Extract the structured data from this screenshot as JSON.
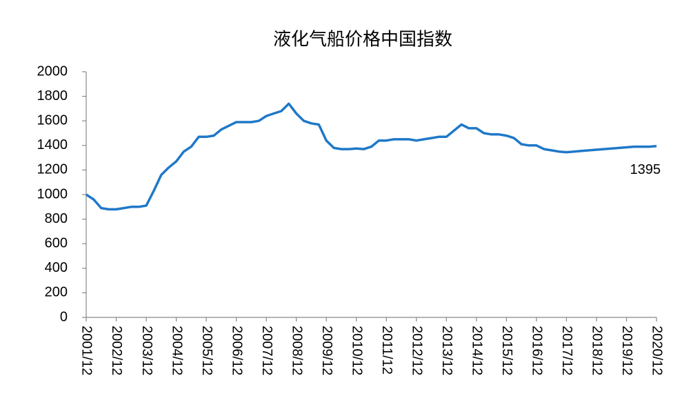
{
  "chart_data": {
    "type": "line",
    "title": "液化气船价格中国指数",
    "categories": [
      "2001/12",
      null,
      null,
      null,
      "2002/12",
      null,
      null,
      null,
      "2003/12",
      null,
      null,
      null,
      "2004/12",
      null,
      null,
      null,
      "2005/12",
      null,
      null,
      null,
      "2006/12",
      null,
      null,
      null,
      "2007/12",
      null,
      null,
      null,
      "2008/12",
      null,
      null,
      null,
      "2009/12",
      null,
      null,
      null,
      "2010/12",
      null,
      null,
      null,
      "2011/12",
      null,
      null,
      null,
      "2012/12",
      null,
      null,
      null,
      "2013/12",
      null,
      null,
      null,
      "2014/12",
      null,
      null,
      null,
      "2015/12",
      null,
      null,
      null,
      "2016/12",
      null,
      null,
      null,
      "2017/12",
      null,
      null,
      null,
      "2018/12",
      null,
      null,
      null,
      "2019/12",
      null,
      null,
      null,
      "2020/12"
    ],
    "values": [
      1000,
      960,
      890,
      880,
      880,
      890,
      900,
      900,
      910,
      1030,
      1160,
      1220,
      1270,
      1350,
      1390,
      1470,
      1470,
      1480,
      1530,
      1560,
      1590,
      1590,
      1590,
      1600,
      1640,
      1660,
      1680,
      1740,
      1660,
      1600,
      1580,
      1570,
      1440,
      1380,
      1370,
      1370,
      1375,
      1370,
      1390,
      1440,
      1440,
      1450,
      1450,
      1450,
      1440,
      1450,
      1460,
      1470,
      1470,
      1520,
      1570,
      1540,
      1540,
      1500,
      1490,
      1490,
      1480,
      1460,
      1410,
      1400,
      1400,
      1370,
      1360,
      1350,
      1345,
      1350,
      1355,
      1360,
      1365,
      1370,
      1375,
      1380,
      1385,
      1390,
      1390,
      1390,
      1395
    ],
    "color": "#1f78c8",
    "ylim": [
      0,
      2000
    ],
    "yticks": [
      0,
      200,
      400,
      600,
      800,
      1000,
      1200,
      1400,
      1600,
      1800,
      2000
    ],
    "grid": false
  }
}
